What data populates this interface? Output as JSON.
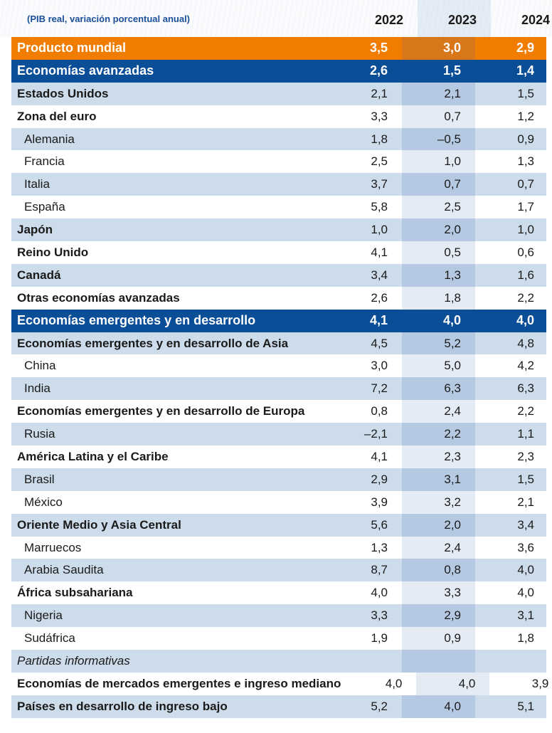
{
  "header": {
    "note": "(PIB real, variación porcentual anual)",
    "years": [
      "2022",
      "2023",
      "2024"
    ]
  },
  "colors": {
    "orange": "#f07d00",
    "navy": "#0b4e98",
    "stripe": "#cddcea",
    "note_text": "#1b4f9c"
  },
  "rows": [
    {
      "label": "Producto mundial",
      "values": [
        "3,5",
        "3,0",
        "2,9"
      ],
      "style": "orange"
    },
    {
      "label": "Economías avanzadas",
      "values": [
        "2,6",
        "1,5",
        "1,4"
      ],
      "style": "navy"
    },
    {
      "label": "Estados Unidos",
      "values": [
        "2,1",
        "2,1",
        "1,5"
      ],
      "style": "bold"
    },
    {
      "label": "Zona del euro",
      "values": [
        "3,3",
        "0,7",
        "1,2"
      ],
      "style": "bold"
    },
    {
      "label": "Alemania",
      "values": [
        "1,8",
        "–0,5",
        "0,9"
      ],
      "style": "sub"
    },
    {
      "label": "Francia",
      "values": [
        "2,5",
        "1,0",
        "1,3"
      ],
      "style": "sub"
    },
    {
      "label": "Italia",
      "values": [
        "3,7",
        "0,7",
        "0,7"
      ],
      "style": "sub"
    },
    {
      "label": "España",
      "values": [
        "5,8",
        "2,5",
        "1,7"
      ],
      "style": "sub"
    },
    {
      "label": "Japón",
      "values": [
        "1,0",
        "2,0",
        "1,0"
      ],
      "style": "bold"
    },
    {
      "label": "Reino Unido",
      "values": [
        "4,1",
        "0,5",
        "0,6"
      ],
      "style": "bold"
    },
    {
      "label": "Canadá",
      "values": [
        "3,4",
        "1,3",
        "1,6"
      ],
      "style": "bold"
    },
    {
      "label": "Otras economías avanzadas",
      "values": [
        "2,6",
        "1,8",
        "2,2"
      ],
      "style": "bold"
    },
    {
      "label": "Economías emergentes y en desarrollo",
      "values": [
        "4,1",
        "4,0",
        "4,0"
      ],
      "style": "navy"
    },
    {
      "label": "Economías emergentes y en desarrollo de Asia",
      "values": [
        "4,5",
        "5,2",
        "4,8"
      ],
      "style": "bold"
    },
    {
      "label": "China",
      "values": [
        "3,0",
        "5,0",
        "4,2"
      ],
      "style": "sub"
    },
    {
      "label": "India",
      "values": [
        "7,2",
        "6,3",
        "6,3"
      ],
      "style": "sub"
    },
    {
      "label": "Economías emergentes y en desarrollo de Europa",
      "values": [
        "0,8",
        "2,4",
        "2,2"
      ],
      "style": "bold"
    },
    {
      "label": "Rusia",
      "values": [
        "–2,1",
        "2,2",
        "1,1"
      ],
      "style": "sub"
    },
    {
      "label": "América Latina y el Caribe",
      "values": [
        "4,1",
        "2,3",
        "2,3"
      ],
      "style": "bold"
    },
    {
      "label": "Brasil",
      "values": [
        "2,9",
        "3,1",
        "1,5"
      ],
      "style": "sub"
    },
    {
      "label": "México",
      "values": [
        "3,9",
        "3,2",
        "2,1"
      ],
      "style": "sub"
    },
    {
      "label": "Oriente Medio y Asia Central",
      "values": [
        "5,6",
        "2,0",
        "3,4"
      ],
      "style": "bold"
    },
    {
      "label": "Marruecos",
      "values": [
        "1,3",
        "2,4",
        "3,6"
      ],
      "style": "sub"
    },
    {
      "label": "Arabia Saudita",
      "values": [
        "8,7",
        "0,8",
        "4,0"
      ],
      "style": "sub"
    },
    {
      "label": "África subsahariana",
      "values": [
        "4,0",
        "3,3",
        "4,0"
      ],
      "style": "bold"
    },
    {
      "label": "Nigeria",
      "values": [
        "3,3",
        "2,9",
        "3,1"
      ],
      "style": "sub"
    },
    {
      "label": "Sudáfrica",
      "values": [
        "1,9",
        "0,9",
        "1,8"
      ],
      "style": "sub"
    },
    {
      "label": "Partidas informativas",
      "values": [
        "",
        "",
        ""
      ],
      "style": "italic"
    },
    {
      "label": "Economías de mercados emergentes e ingreso mediano",
      "values": [
        "4,0",
        "4,0",
        "3,9"
      ],
      "style": "bold"
    },
    {
      "label": "Países en desarrollo de ingreso bajo",
      "values": [
        "5,2",
        "4,0",
        "5,1"
      ],
      "style": "bold"
    }
  ]
}
